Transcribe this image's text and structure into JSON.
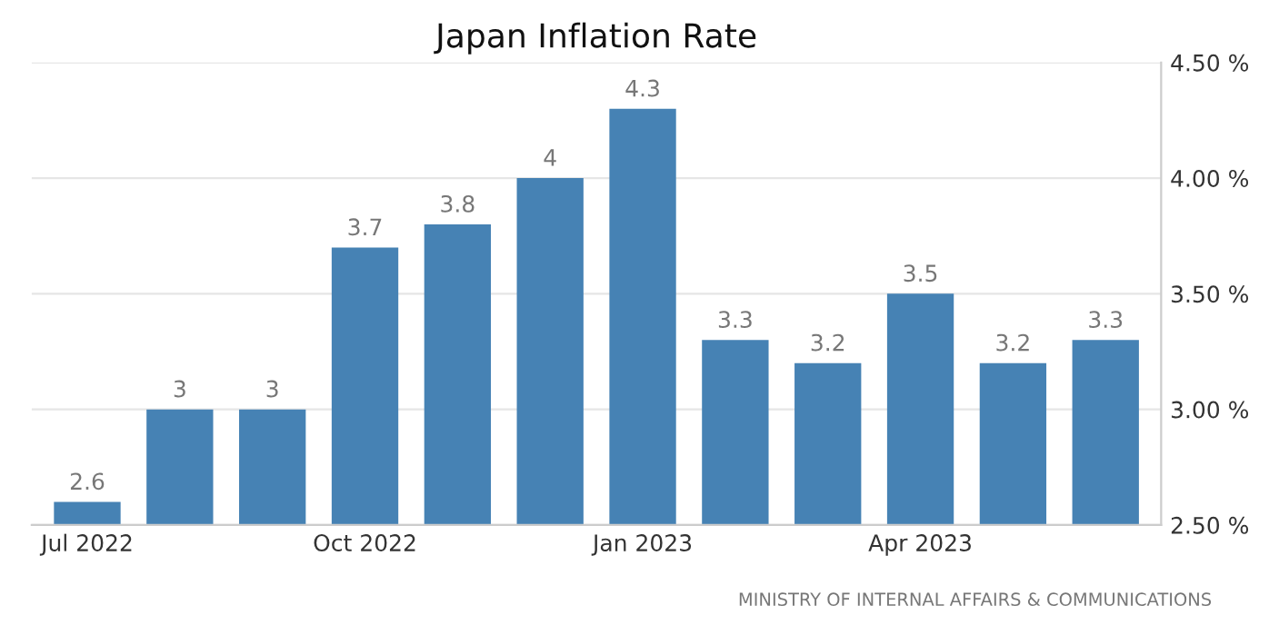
{
  "chart_data": {
    "type": "bar",
    "title": "Japan Inflation Rate",
    "categories": [
      "Jul 2022",
      null,
      null,
      "Oct 2022",
      null,
      null,
      "Jan 2023",
      null,
      null,
      "Apr 2023",
      null,
      null
    ],
    "values": [
      2.6,
      3,
      3,
      3.7,
      3.8,
      4,
      4.3,
      3.3,
      3.2,
      3.5,
      3.2,
      3.3
    ],
    "color": "#4682b4",
    "data_labels": true,
    "ylim": [
      2.5,
      4.5
    ],
    "yticks": [
      {
        "value": 2.5,
        "label": "2.50 %"
      },
      {
        "value": 3.0,
        "label": "3.00 %"
      },
      {
        "value": 3.5,
        "label": "3.50 %"
      },
      {
        "value": 4.0,
        "label": "4.00 %"
      },
      {
        "value": 4.5,
        "label": "4.50 %"
      }
    ],
    "grid": "y",
    "annotations": [
      "MINISTRY OF INTERNAL AFFAIRS & COMMUNICATIONS"
    ]
  }
}
